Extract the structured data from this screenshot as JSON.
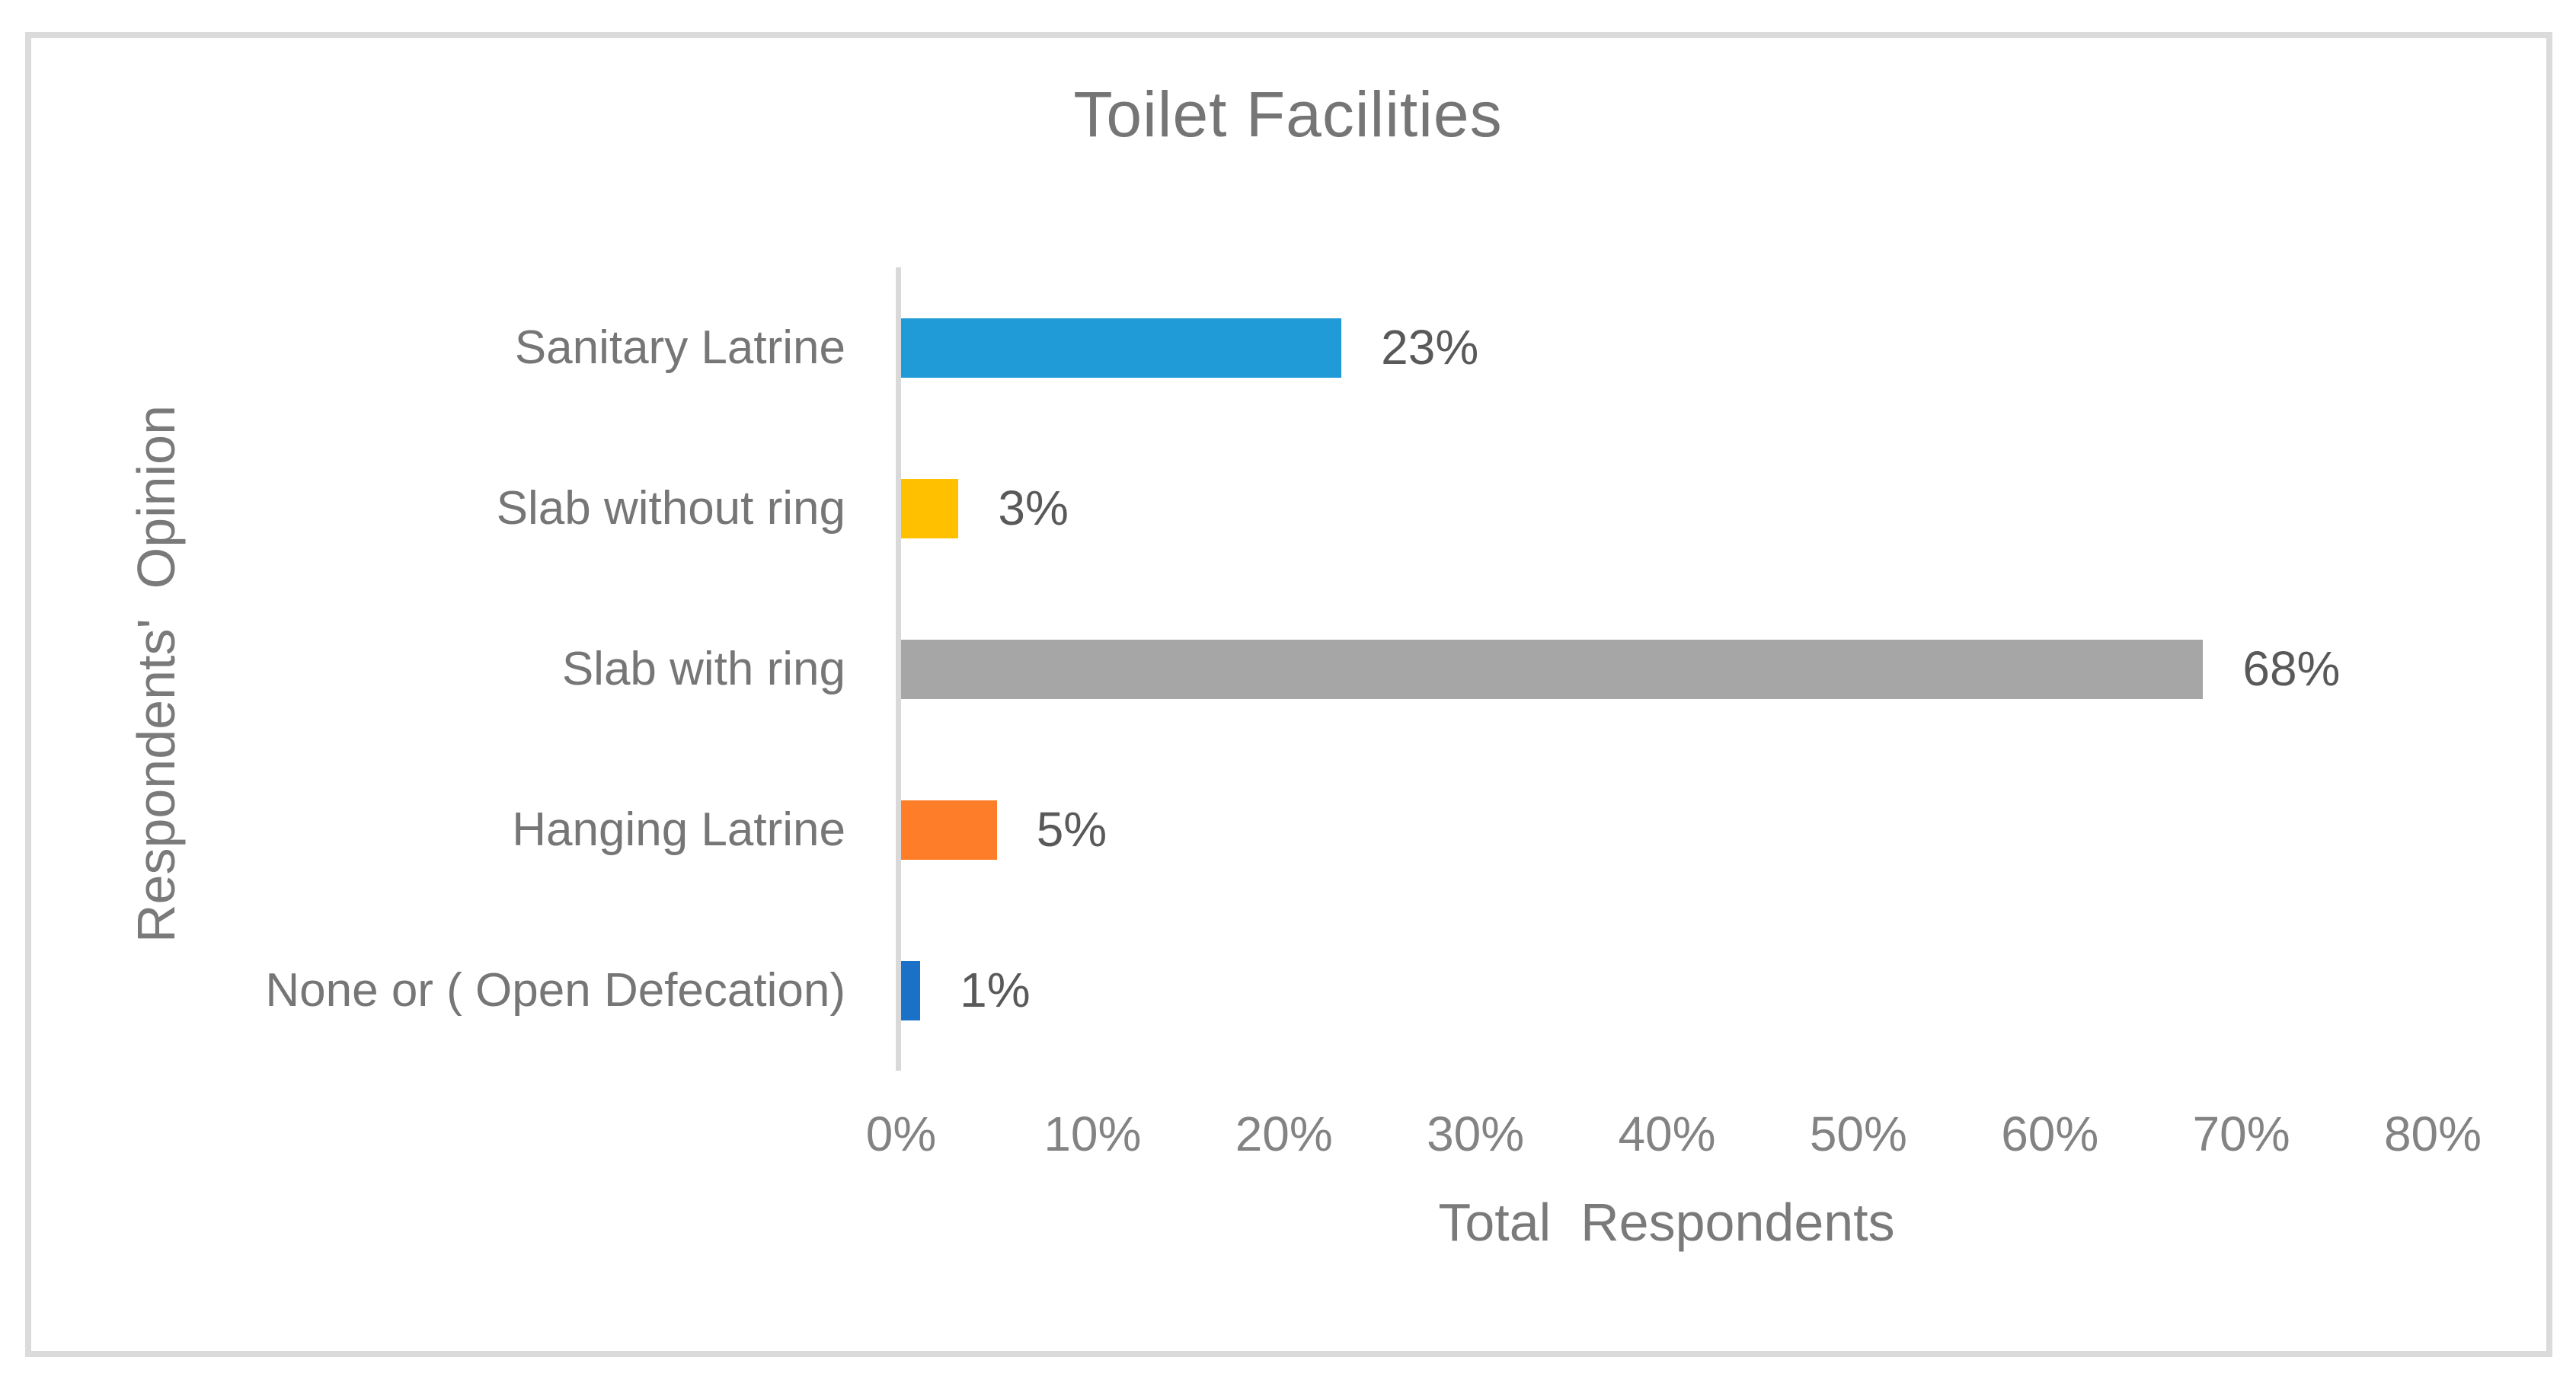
{
  "chart_data": {
    "type": "bar",
    "orientation": "horizontal",
    "title": "Toilet Facilities",
    "categories": [
      "Sanitary Latrine",
      "Slab without ring",
      "Slab with ring",
      "Hanging Latrine",
      "None or ( Open Defecation)"
    ],
    "values": [
      23,
      3,
      68,
      5,
      1
    ],
    "value_labels": [
      "23%",
      "3%",
      "68%",
      "5%",
      "1%"
    ],
    "bar_colors": [
      "#209BD8",
      "#FFC000",
      "#A6A6A6",
      "#FD7D28",
      "#1B70C7"
    ],
    "xlabel": "Total  Respondents",
    "ylabel": "Respondents'  Opinion",
    "xticks": [
      "0%",
      "10%",
      "20%",
      "30%",
      "40%",
      "50%",
      "60%",
      "70%",
      "80%"
    ],
    "xtick_values": [
      0,
      10,
      20,
      30,
      40,
      50,
      60,
      70,
      80
    ],
    "xlim": [
      0,
      80
    ],
    "grid": false,
    "legend": "none",
    "axis_line_color": "#D9D9D9",
    "frame_color": "#DBDBDB"
  }
}
